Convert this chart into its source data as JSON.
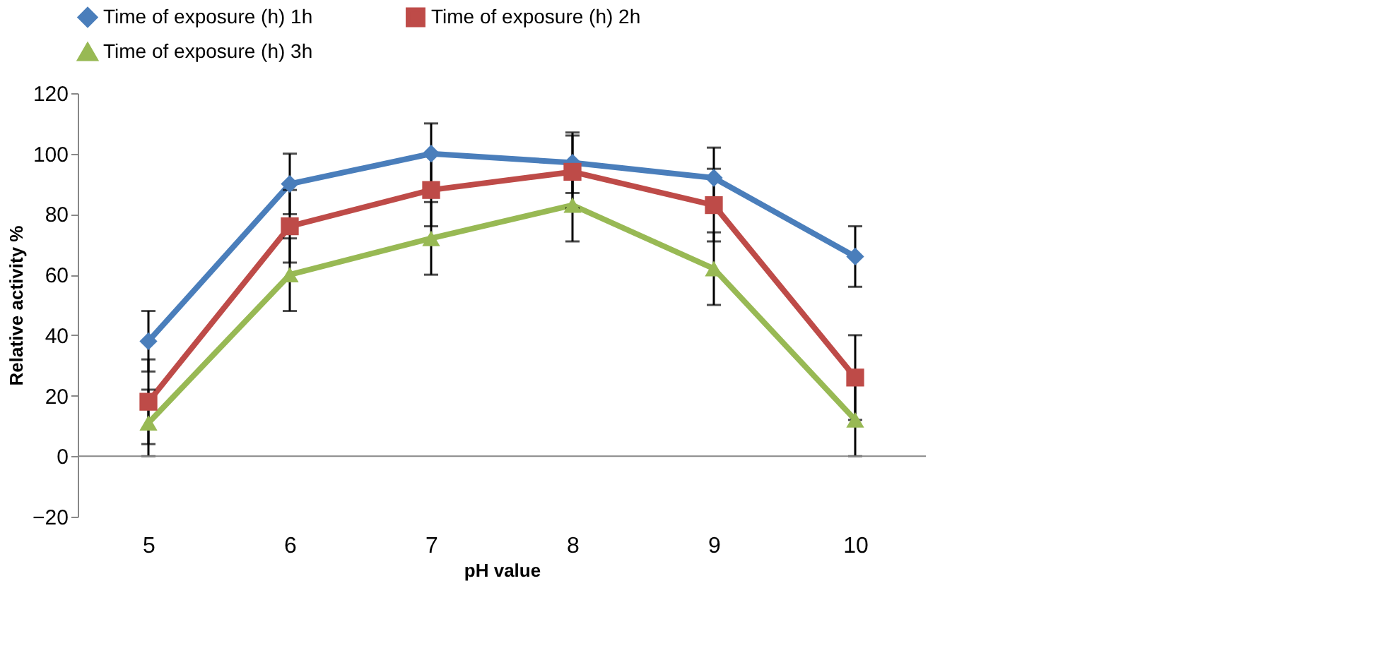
{
  "chart_data": {
    "type": "line",
    "xlabel": "pH value",
    "ylabel": "Relative activity %",
    "categories": [
      "5",
      "6",
      "7",
      "8",
      "9",
      "10"
    ],
    "series": [
      {
        "name": "Time of exposure (h) 1h",
        "color": "#4a7ebb",
        "marker": "diamond",
        "values": [
          38,
          90,
          100,
          97,
          92,
          66
        ],
        "errors": [
          10,
          10,
          10,
          10,
          10,
          10
        ]
      },
      {
        "name": "Time of exposure (h) 2h",
        "color": "#be4b48",
        "marker": "square",
        "values": [
          18,
          76,
          88,
          94,
          83,
          26
        ],
        "errors": [
          14,
          12,
          12,
          12,
          12,
          14
        ]
      },
      {
        "name": "Time of exposure (h) 3h",
        "color": "#98b954",
        "marker": "triangle",
        "values": [
          11,
          60,
          72,
          83,
          62,
          12
        ],
        "errors": [
          11,
          12,
          12,
          12,
          12,
          12
        ]
      }
    ],
    "ylim": [
      -20,
      120
    ],
    "yticks": [
      -20,
      0,
      20,
      40,
      60,
      80,
      100,
      120
    ],
    "ref_lines": [
      {
        "axis": "y",
        "value": 0,
        "color": "#888888"
      }
    ],
    "grid": false,
    "legend": "top",
    "line_style": "solid"
  }
}
